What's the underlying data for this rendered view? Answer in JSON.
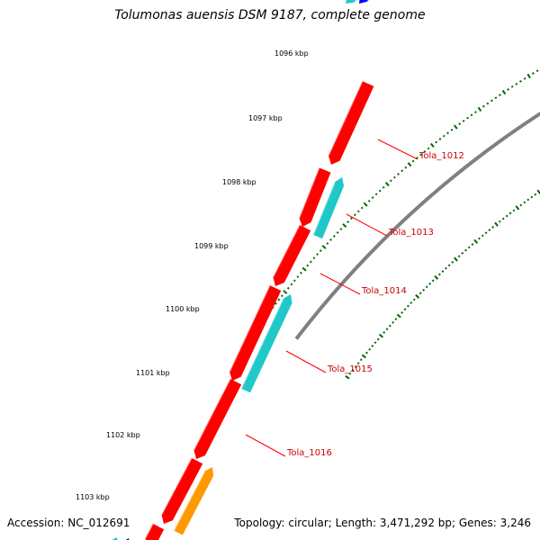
{
  "title": "Tolumonas auensis DSM 9187, complete genome",
  "accession": "Accession: NC_012691",
  "summary": "Topology: circular; Length: 3,471,292 bp; Genes: 3,246",
  "colors": {
    "backbone": "#808080",
    "gene_red": "#ff0000",
    "gene_cyan": "#20c8c8",
    "gene_orange": "#ff9900",
    "gene_blue": "#0000ff",
    "tick": "#006600",
    "label_line": "#ff0000",
    "label_text": "#cc0000"
  },
  "scale_labels": [
    "1096 kbp",
    "1097 kbp",
    "1098 kbp",
    "1099 kbp",
    "1100 kbp",
    "1101 kbp",
    "1102 kbp",
    "1103 kbp"
  ],
  "gene_labels": [
    "Tola_1012",
    "Tola_1013",
    "Tola_1014",
    "Tola_1015",
    "Tola_1016"
  ]
}
